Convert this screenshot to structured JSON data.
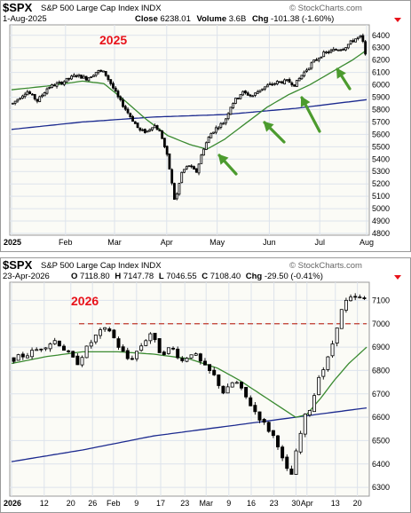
{
  "chart_data": [
    {
      "type": "candlestick",
      "symbol": "$SPX",
      "name": "S&P 500 Large Cap Index",
      "exchange": "INDX",
      "date": "1-Aug-2025",
      "close_label": "Close",
      "close": "6238.01",
      "volume_label": "Volume",
      "volume": "3.6B",
      "chg_label": "Chg",
      "change": "-101.38 (-1.60%)",
      "credit": "© StockCharts.com",
      "annotation": "2025",
      "ylim": [
        4800,
        6470
      ],
      "yticks": [
        4800,
        4900,
        5000,
        5100,
        5200,
        5300,
        5400,
        5500,
        5600,
        5700,
        5800,
        5900,
        6000,
        6100,
        6200,
        6300,
        6400
      ],
      "xticks": [
        {
          "label": "2025",
          "pos": 0.0,
          "bold": true
        },
        {
          "label": "Feb",
          "pos": 0.152
        },
        {
          "label": "Mar",
          "pos": 0.29
        },
        {
          "label": "Apr",
          "pos": 0.437
        },
        {
          "label": "May",
          "pos": 0.579
        },
        {
          "label": "Jun",
          "pos": 0.726
        },
        {
          "label": "Jul",
          "pos": 0.868
        },
        {
          "label": "Aug",
          "pos": 1.0
        }
      ],
      "ohlc_waypoints": [
        [
          0.0,
          5850
        ],
        [
          0.04,
          5950
        ],
        [
          0.07,
          5870
        ],
        [
          0.1,
          5980
        ],
        [
          0.14,
          6020
        ],
        [
          0.18,
          6080
        ],
        [
          0.21,
          6050
        ],
        [
          0.24,
          6110
        ],
        [
          0.26,
          6100
        ],
        [
          0.28,
          6000
        ],
        [
          0.3,
          5890
        ],
        [
          0.33,
          5760
        ],
        [
          0.36,
          5630
        ],
        [
          0.38,
          5620
        ],
        [
          0.4,
          5680
        ],
        [
          0.42,
          5610
        ],
        [
          0.44,
          5400
        ],
        [
          0.46,
          5050
        ],
        [
          0.48,
          5300
        ],
        [
          0.5,
          5350
        ],
        [
          0.52,
          5290
        ],
        [
          0.54,
          5480
        ],
        [
          0.56,
          5600
        ],
        [
          0.58,
          5660
        ],
        [
          0.6,
          5700
        ],
        [
          0.62,
          5840
        ],
        [
          0.65,
          5940
        ],
        [
          0.68,
          5910
        ],
        [
          0.7,
          5960
        ],
        [
          0.72,
          5990
        ],
        [
          0.75,
          6020
        ],
        [
          0.78,
          6030
        ],
        [
          0.8,
          6000
        ],
        [
          0.82,
          6080
        ],
        [
          0.85,
          6180
        ],
        [
          0.88,
          6250
        ],
        [
          0.91,
          6280
        ],
        [
          0.94,
          6300
        ],
        [
          0.97,
          6370
        ],
        [
          0.99,
          6390
        ],
        [
          1.0,
          6238
        ]
      ],
      "ma50_waypoints": [
        [
          0.0,
          5960
        ],
        [
          0.1,
          5990
        ],
        [
          0.2,
          6030
        ],
        [
          0.26,
          6010
        ],
        [
          0.32,
          5870
        ],
        [
          0.38,
          5720
        ],
        [
          0.44,
          5590
        ],
        [
          0.5,
          5520
        ],
        [
          0.55,
          5480
        ],
        [
          0.6,
          5560
        ],
        [
          0.66,
          5690
        ],
        [
          0.72,
          5820
        ],
        [
          0.78,
          5920
        ],
        [
          0.84,
          6000
        ],
        [
          0.9,
          6100
        ],
        [
          0.96,
          6200
        ],
        [
          1.0,
          6280
        ]
      ],
      "ma200_waypoints": [
        [
          0.0,
          5640
        ],
        [
          0.2,
          5700
        ],
        [
          0.4,
          5740
        ],
        [
          0.6,
          5760
        ],
        [
          0.8,
          5810
        ],
        [
          1.0,
          5880
        ]
      ],
      "arrows": 4
    },
    {
      "type": "candlestick",
      "symbol": "$SPX",
      "name": "S&P 500 Large Cap Index",
      "exchange": "INDX",
      "date": "23-Apr-2026",
      "open_label": "O",
      "open": "7118.80",
      "high_label": "H",
      "high": "7147.78",
      "low_label": "L",
      "low": "7046.55",
      "c_label": "C",
      "close": "7108.40",
      "chg_label": "Chg",
      "change": "-29.50 (-0.41%)",
      "credit": "© StockCharts.com",
      "annotation": "2026",
      "ylim": [
        6270,
        7170
      ],
      "yticks": [
        6300,
        6400,
        6500,
        6600,
        6700,
        6800,
        6900,
        7000,
        7100
      ],
      "reference_level": 7000,
      "xticks": [
        {
          "label": "2026",
          "pos": 0.0,
          "bold": true
        },
        {
          "label": "12",
          "pos": 0.092
        },
        {
          "label": "20",
          "pos": 0.167
        },
        {
          "label": "26",
          "pos": 0.228
        },
        {
          "label": "Feb",
          "pos": 0.287
        },
        {
          "label": "9",
          "pos": 0.352
        },
        {
          "label": "17",
          "pos": 0.42
        },
        {
          "label": "23",
          "pos": 0.488
        },
        {
          "label": "Mar",
          "pos": 0.548
        },
        {
          "label": "9",
          "pos": 0.612
        },
        {
          "label": "16",
          "pos": 0.675
        },
        {
          "label": "23",
          "pos": 0.739
        },
        {
          "label": "30",
          "pos": 0.801
        },
        {
          "label": "Apr",
          "pos": 0.832
        },
        {
          "label": "13",
          "pos": 0.912
        },
        {
          "label": "20",
          "pos": 0.974
        }
      ],
      "ohlc_waypoints": [
        [
          0.0,
          6850
        ],
        [
          0.04,
          6870
        ],
        [
          0.08,
          6900
        ],
        [
          0.12,
          6930
        ],
        [
          0.15,
          6880
        ],
        [
          0.18,
          6830
        ],
        [
          0.21,
          6900
        ],
        [
          0.24,
          6960
        ],
        [
          0.27,
          6980
        ],
        [
          0.3,
          6900
        ],
        [
          0.33,
          6840
        ],
        [
          0.36,
          6900
        ],
        [
          0.39,
          6960
        ],
        [
          0.42,
          6870
        ],
        [
          0.45,
          6900
        ],
        [
          0.48,
          6840
        ],
        [
          0.51,
          6880
        ],
        [
          0.54,
          6820
        ],
        [
          0.57,
          6780
        ],
        [
          0.6,
          6700
        ],
        [
          0.63,
          6760
        ],
        [
          0.66,
          6690
        ],
        [
          0.69,
          6620
        ],
        [
          0.72,
          6560
        ],
        [
          0.75,
          6500
        ],
        [
          0.77,
          6400
        ],
        [
          0.79,
          6340
        ],
        [
          0.81,
          6480
        ],
        [
          0.83,
          6600
        ],
        [
          0.85,
          6650
        ],
        [
          0.87,
          6780
        ],
        [
          0.89,
          6820
        ],
        [
          0.91,
          6920
        ],
        [
          0.93,
          7040
        ],
        [
          0.95,
          7100
        ],
        [
          0.97,
          7110
        ],
        [
          1.0,
          7108
        ]
      ],
      "ma50_waypoints": [
        [
          0.0,
          6830
        ],
        [
          0.1,
          6860
        ],
        [
          0.2,
          6880
        ],
        [
          0.3,
          6880
        ],
        [
          0.4,
          6870
        ],
        [
          0.5,
          6850
        ],
        [
          0.58,
          6810
        ],
        [
          0.64,
          6760
        ],
        [
          0.7,
          6700
        ],
        [
          0.76,
          6640
        ],
        [
          0.8,
          6600
        ],
        [
          0.83,
          6610
        ],
        [
          0.87,
          6680
        ],
        [
          0.91,
          6760
        ],
        [
          0.95,
          6830
        ],
        [
          1.0,
          6900
        ]
      ],
      "ma200_waypoints": [
        [
          0.0,
          6410
        ],
        [
          0.2,
          6460
        ],
        [
          0.4,
          6520
        ],
        [
          0.6,
          6560
        ],
        [
          0.8,
          6600
        ],
        [
          1.0,
          6640
        ]
      ]
    }
  ]
}
